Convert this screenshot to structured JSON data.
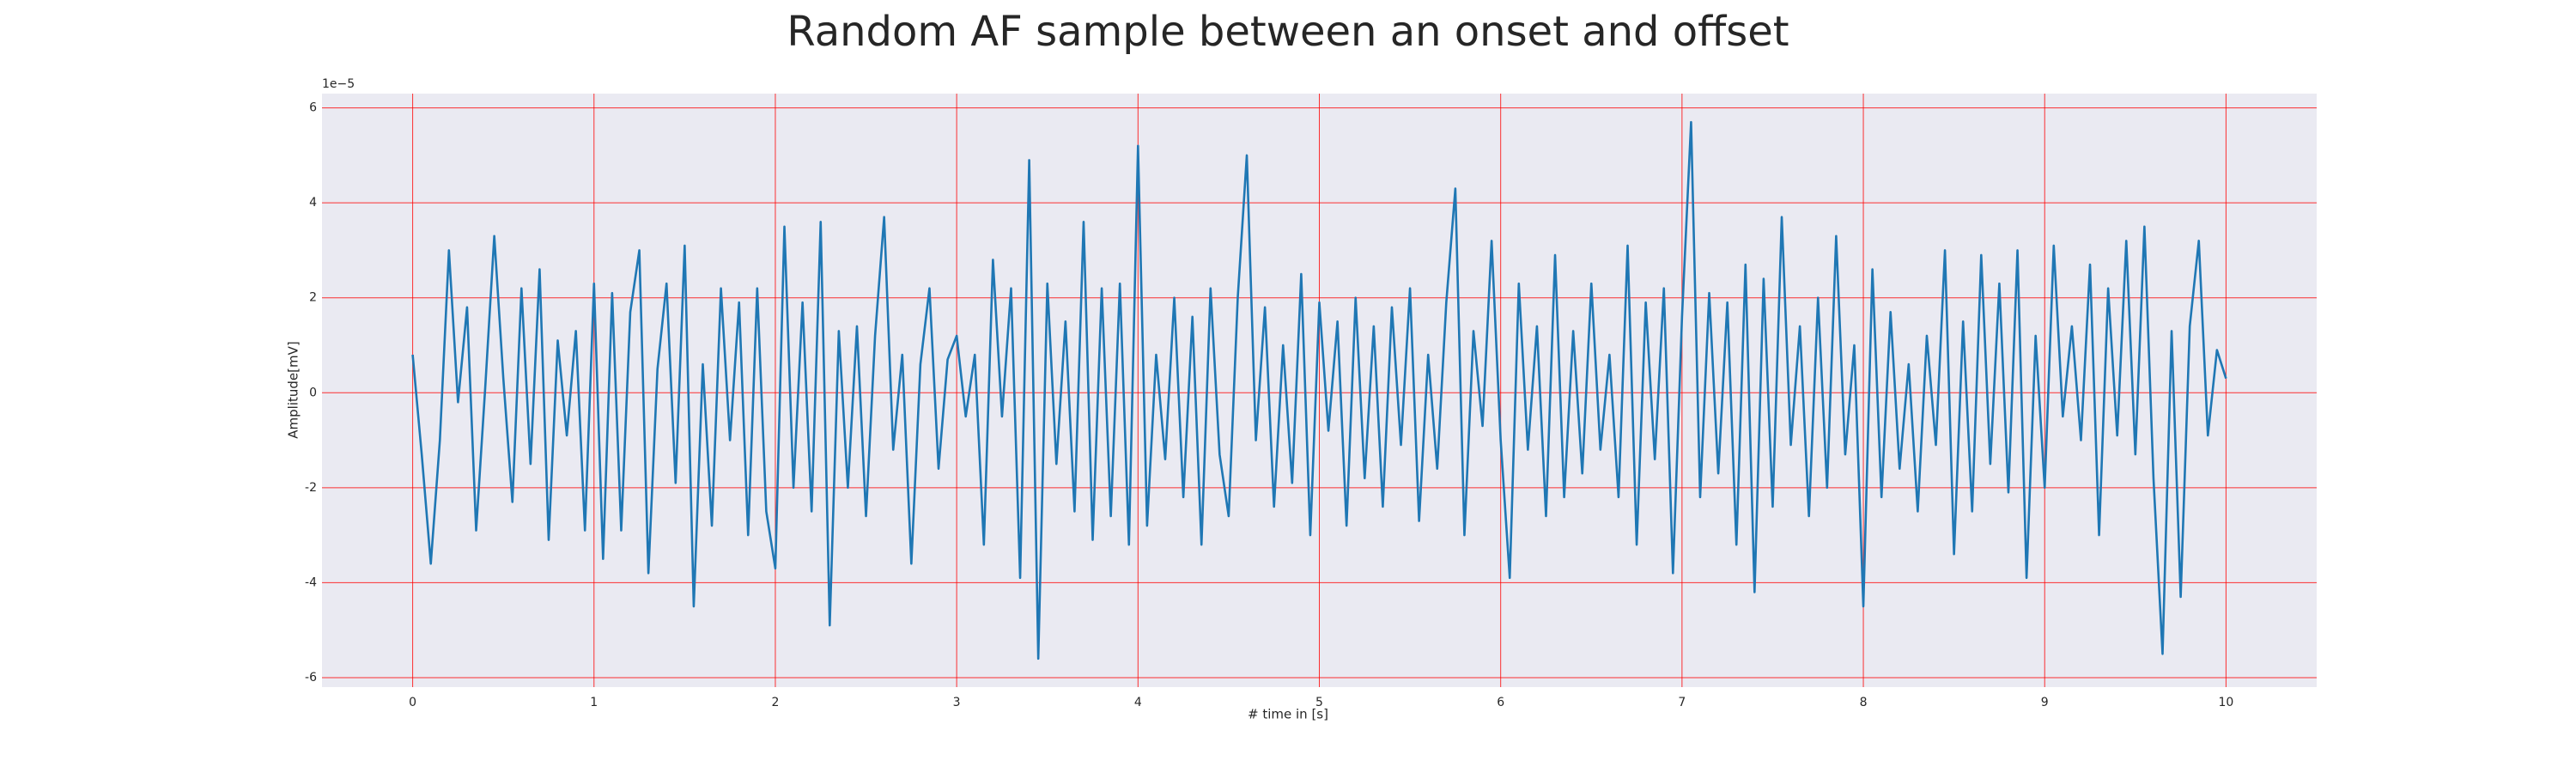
{
  "chart_data": {
    "type": "line",
    "title": "Random AF sample between an onset and offset",
    "x_label": "# time in [s]",
    "y_label": "Amplitude[mV]",
    "y_offset_label": "1e−5",
    "xlim": [
      -0.5,
      10.5
    ],
    "ylim": [
      -6.2,
      6.3
    ],
    "xticks": [
      0,
      1,
      2,
      3,
      4,
      5,
      6,
      7,
      8,
      9,
      10
    ],
    "yticks": [
      -6,
      -4,
      -2,
      0,
      2,
      4,
      6
    ],
    "grid": true,
    "grid_color": "#ff0000",
    "background": "#eaeaf2",
    "x": [
      0,
      0.05,
      0.1,
      0.15,
      0.2,
      0.25,
      0.3,
      0.35,
      0.4,
      0.45,
      0.5,
      0.55,
      0.6,
      0.65,
      0.7,
      0.75,
      0.8,
      0.85,
      0.9,
      0.95,
      1,
      1.05,
      1.1,
      1.15,
      1.2,
      1.25,
      1.3,
      1.35,
      1.4,
      1.45,
      1.5,
      1.55,
      1.6,
      1.65,
      1.7,
      1.75,
      1.8,
      1.85,
      1.9,
      1.95,
      2,
      2.05,
      2.1,
      2.15,
      2.2,
      2.25,
      2.3,
      2.35,
      2.4,
      2.45,
      2.5,
      2.55,
      2.6,
      2.65,
      2.7,
      2.75,
      2.8,
      2.85,
      2.9,
      2.95,
      3,
      3.05,
      3.1,
      3.15,
      3.2,
      3.25,
      3.3,
      3.35,
      3.4,
      3.45,
      3.5,
      3.55,
      3.6,
      3.65,
      3.7,
      3.75,
      3.8,
      3.85,
      3.9,
      3.95,
      4,
      4.05,
      4.1,
      4.15,
      4.2,
      4.25,
      4.3,
      4.35,
      4.4,
      4.45,
      4.5,
      4.55,
      4.6,
      4.65,
      4.7,
      4.75,
      4.8,
      4.85,
      4.9,
      4.95,
      5,
      5.05,
      5.1,
      5.15,
      5.2,
      5.25,
      5.3,
      5.35,
      5.4,
      5.45,
      5.5,
      5.55,
      5.6,
      5.65,
      5.7,
      5.75,
      5.8,
      5.85,
      5.9,
      5.95,
      6,
      6.05,
      6.1,
      6.15,
      6.2,
      6.25,
      6.3,
      6.35,
      6.4,
      6.45,
      6.5,
      6.55,
      6.6,
      6.65,
      6.7,
      6.75,
      6.8,
      6.85,
      6.9,
      6.95,
      7,
      7.05,
      7.1,
      7.15,
      7.2,
      7.25,
      7.3,
      7.35,
      7.4,
      7.45,
      7.5,
      7.55,
      7.6,
      7.65,
      7.7,
      7.75,
      7.8,
      7.85,
      7.9,
      7.95,
      8,
      8.05,
      8.1,
      8.15,
      8.2,
      8.25,
      8.3,
      8.35,
      8.4,
      8.45,
      8.5,
      8.55,
      8.6,
      8.65,
      8.7,
      8.75,
      8.8,
      8.85,
      8.9,
      8.95,
      9,
      9.05,
      9.1,
      9.15,
      9.2,
      9.25,
      9.3,
      9.35,
      9.4,
      9.45,
      9.5,
      9.55,
      9.6,
      9.65,
      9.7,
      9.75,
      9.8,
      9.85,
      9.9,
      9.95,
      10
    ],
    "series": [
      {
        "color": "#1f77b4",
        "values": [
          0.8,
          -1.3,
          -3.6,
          -1.0,
          3.0,
          -0.2,
          1.8,
          -2.9,
          0.1,
          3.3,
          0.3,
          -2.3,
          2.2,
          -1.5,
          2.6,
          -3.1,
          1.1,
          -0.9,
          1.3,
          -2.9,
          2.3,
          -3.5,
          2.1,
          -2.9,
          1.7,
          3.0,
          -3.8,
          0.5,
          2.3,
          -1.9,
          3.1,
          -4.5,
          0.6,
          -2.8,
          2.2,
          -1.0,
          1.9,
          -3.0,
          2.2,
          -2.5,
          -3.7,
          3.5,
          -2.0,
          1.9,
          -2.5,
          3.6,
          -4.9,
          1.3,
          -2.0,
          1.4,
          -2.6,
          1.2,
          3.7,
          -1.2,
          0.8,
          -3.6,
          0.6,
          2.2,
          -1.6,
          0.7,
          1.2,
          -0.5,
          0.8,
          -3.2,
          2.8,
          -0.5,
          2.2,
          -3.9,
          4.9,
          -5.6,
          2.3,
          -1.5,
          1.5,
          -2.5,
          3.6,
          -3.1,
          2.2,
          -2.6,
          2.3,
          -3.2,
          5.2,
          -2.8,
          0.8,
          -1.4,
          2.0,
          -2.2,
          1.6,
          -3.2,
          2.2,
          -1.3,
          -2.6,
          2.0,
          5.0,
          -1.0,
          1.8,
          -2.4,
          1.0,
          -1.9,
          2.5,
          -3.0,
          1.9,
          -0.8,
          1.5,
          -2.8,
          2.0,
          -1.8,
          1.4,
          -2.4,
          1.8,
          -1.1,
          2.2,
          -2.7,
          0.8,
          -1.6,
          1.9,
          4.3,
          -3.0,
          1.3,
          -0.7,
          3.2,
          -1.0,
          -3.9,
          2.3,
          -1.2,
          1.4,
          -2.6,
          2.9,
          -2.2,
          1.3,
          -1.7,
          2.3,
          -1.2,
          0.8,
          -2.2,
          3.1,
          -3.2,
          1.9,
          -1.4,
          2.2,
          -3.8,
          1.6,
          5.7,
          -2.2,
          2.1,
          -1.7,
          1.9,
          -3.2,
          2.7,
          -4.2,
          2.4,
          -2.4,
          3.7,
          -1.1,
          1.4,
          -2.6,
          2.0,
          -2.0,
          3.3,
          -1.3,
          1.0,
          -4.5,
          2.6,
          -2.2,
          1.7,
          -1.6,
          0.6,
          -2.5,
          1.2,
          -1.1,
          3.0,
          -3.4,
          1.5,
          -2.5,
          2.9,
          -1.5,
          2.3,
          -2.1,
          3.0,
          -3.9,
          1.2,
          -2.0,
          3.1,
          -0.5,
          1.4,
          -1.0,
          2.7,
          -3.0,
          2.2,
          -0.9,
          3.2,
          -1.3,
          3.5,
          -1.8,
          -5.5,
          1.3,
          -4.3,
          1.4,
          3.2,
          -0.9,
          0.9,
          0.3
        ]
      }
    ]
  }
}
